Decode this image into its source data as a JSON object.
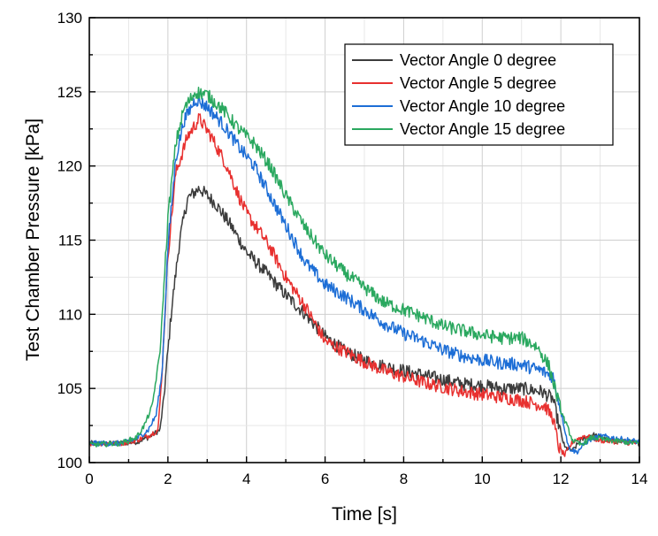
{
  "chart_data": {
    "type": "line",
    "title": "",
    "xlabel": "Time [s]",
    "ylabel": "Test Chamber Pressure [kPa]",
    "xlim": [
      0,
      14
    ],
    "ylim": [
      100,
      130
    ],
    "xticks": [
      0,
      2,
      4,
      6,
      8,
      10,
      12,
      14
    ],
    "yticks": [
      100,
      105,
      110,
      115,
      120,
      125,
      130
    ],
    "grid": true,
    "legend_position": "top-right",
    "series": [
      {
        "name": "Vector Angle 0 degree",
        "color": "#3c3c3c",
        "noise": 0.45,
        "x": [
          0,
          0.8,
          1.2,
          1.5,
          1.8,
          1.9,
          2.1,
          2.3,
          2.5,
          2.8,
          3.2,
          3.6,
          4.0,
          4.5,
          5.0,
          5.5,
          6.0,
          6.5,
          7.0,
          7.5,
          8.0,
          8.5,
          9.0,
          9.5,
          10.0,
          10.5,
          11.0,
          11.5,
          11.8,
          11.95,
          12.1,
          12.3,
          12.5,
          12.8,
          13.2,
          14.0
        ],
        "y": [
          101.3,
          101.3,
          101.4,
          101.7,
          102.2,
          104.5,
          110.5,
          115.0,
          117.8,
          118.5,
          117.5,
          116.0,
          114.2,
          112.8,
          111.3,
          110.0,
          108.5,
          107.5,
          106.9,
          106.5,
          106.2,
          105.9,
          105.6,
          105.3,
          105.2,
          105.0,
          105.0,
          104.8,
          104.3,
          102.5,
          101.0,
          100.8,
          101.5,
          101.9,
          101.5,
          101.3
        ]
      },
      {
        "name": "Vector Angle 5 degree",
        "color": "#e8302f",
        "noise": 0.45,
        "x": [
          0,
          0.8,
          1.2,
          1.5,
          1.75,
          1.85,
          2.0,
          2.2,
          2.5,
          2.8,
          3.1,
          3.5,
          3.8,
          4.0,
          4.3,
          4.6,
          5.0,
          5.5,
          6.0,
          6.5,
          7.0,
          7.5,
          8.0,
          8.5,
          9.0,
          9.5,
          10.0,
          10.5,
          11.0,
          11.3,
          11.6,
          11.8,
          11.95,
          12.1,
          12.3,
          12.6,
          13.0,
          14.0
        ],
        "y": [
          101.3,
          101.3,
          101.5,
          101.8,
          102.2,
          106.0,
          114.0,
          119.5,
          122.0,
          123.2,
          122.0,
          120.0,
          118.0,
          116.8,
          115.7,
          114.5,
          112.5,
          110.5,
          108.2,
          107.5,
          106.8,
          106.2,
          105.8,
          105.4,
          105.1,
          104.8,
          104.6,
          104.4,
          104.2,
          104.0,
          103.8,
          103.0,
          101.0,
          100.5,
          101.4,
          101.8,
          101.5,
          101.3
        ]
      },
      {
        "name": "Vector Angle 10 degree",
        "color": "#1d6ed6",
        "noise": 0.45,
        "x": [
          0,
          0.8,
          1.2,
          1.5,
          1.7,
          1.85,
          2.0,
          2.2,
          2.4,
          2.7,
          3.0,
          3.4,
          3.8,
          4.2,
          4.6,
          5.0,
          5.5,
          6.0,
          6.5,
          7.0,
          7.5,
          8.0,
          8.5,
          9.0,
          9.5,
          10.0,
          10.5,
          11.0,
          11.5,
          11.8,
          12.0,
          12.2,
          12.4,
          12.7,
          13.0,
          14.0
        ],
        "y": [
          101.3,
          101.3,
          101.6,
          102.2,
          103.2,
          106.0,
          114.5,
          120.5,
          123.0,
          124.5,
          124.0,
          122.8,
          121.3,
          120.0,
          118.0,
          116.0,
          113.5,
          112.0,
          111.2,
          110.3,
          109.4,
          108.7,
          108.2,
          107.6,
          107.2,
          106.9,
          106.7,
          106.6,
          106.2,
          105.8,
          103.5,
          101.0,
          100.7,
          101.5,
          101.8,
          101.4
        ]
      },
      {
        "name": "Vector Angle 15 degree",
        "color": "#2aa85f",
        "noise": 0.45,
        "x": [
          0,
          0.8,
          1.2,
          1.4,
          1.6,
          1.8,
          2.0,
          2.2,
          2.4,
          2.7,
          3.0,
          3.4,
          3.8,
          4.2,
          4.6,
          5.0,
          5.5,
          6.0,
          6.5,
          7.0,
          7.5,
          8.0,
          8.5,
          9.0,
          9.5,
          10.0,
          10.5,
          11.0,
          11.4,
          11.7,
          12.0,
          12.3,
          12.5,
          12.8,
          13.2,
          14.0
        ],
        "y": [
          101.2,
          101.3,
          101.7,
          102.5,
          103.8,
          107.5,
          116.5,
          121.5,
          123.8,
          125.0,
          124.8,
          123.8,
          122.5,
          121.5,
          120.0,
          118.0,
          115.8,
          114.0,
          112.8,
          111.8,
          110.8,
          110.3,
          109.8,
          109.2,
          108.9,
          108.6,
          108.4,
          108.4,
          107.8,
          106.5,
          103.5,
          101.5,
          101.2,
          101.7,
          101.5,
          101.3
        ]
      }
    ]
  }
}
